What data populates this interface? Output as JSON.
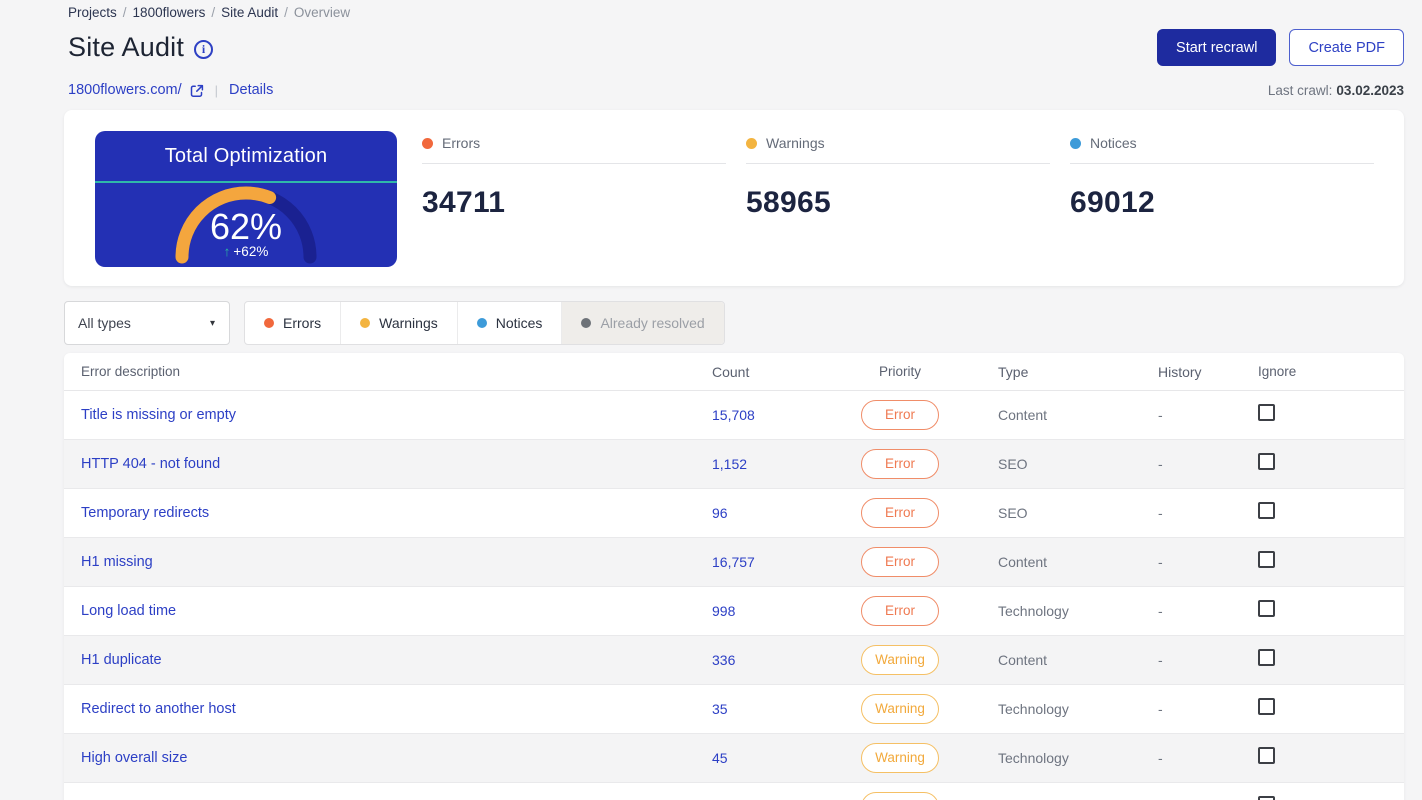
{
  "breadcrumb": {
    "items": [
      "Projects",
      "1800flowers",
      "Site Audit"
    ],
    "current": "Overview",
    "separator": "/"
  },
  "header": {
    "title": "Site Audit",
    "recrawl_label": "Start recrawl",
    "create_pdf_label": "Create PDF"
  },
  "site": {
    "domain": "1800flowers.com/",
    "details_label": "Details",
    "last_crawl_label": "Last crawl:",
    "last_crawl_date": "03.02.2023"
  },
  "gauge": {
    "title": "Total Optimization",
    "percent": 62,
    "value_label": "62%",
    "arrow": "↑",
    "delta_label": "+62%",
    "bg": "#2330b4",
    "track": "#1a2191",
    "progress": "#f4a63e",
    "line": "#2fb8a9",
    "arrow_color": "#2ab8a0"
  },
  "stats": {
    "items": [
      {
        "label": "Errors",
        "value": "34711",
        "color": "#f1683c"
      },
      {
        "label": "Warnings",
        "value": "58965",
        "color": "#f3b440"
      },
      {
        "label": "Notices",
        "value": "69012",
        "color": "#3d9bd9"
      }
    ]
  },
  "filter": {
    "type_select": {
      "value": "All types",
      "caret": "▾"
    },
    "tabs": [
      {
        "label": "Errors",
        "color": "#f1683c"
      },
      {
        "label": "Warnings",
        "color": "#f3b440"
      },
      {
        "label": "Notices",
        "color": "#3d9bd9"
      },
      {
        "label": "Already resolved",
        "color": "#6d7278",
        "bg": "#efedea",
        "inactive": true
      }
    ]
  },
  "badges": {
    "error": {
      "text": "#ef7a52",
      "border": "#f08d69"
    },
    "warning": {
      "text": "#f2a93b",
      "border": "#f5c065"
    }
  },
  "table": {
    "columns": [
      "Error description",
      "Count",
      "Priority",
      "Type",
      "History",
      "Ignore"
    ],
    "rows": [
      {
        "description": "Title is missing or empty",
        "count": "15,708",
        "priority": "Error",
        "type": "Content",
        "history": "-"
      },
      {
        "description": "HTTP 404 - not found",
        "count": "1,152",
        "priority": "Error",
        "type": "SEO",
        "history": "-"
      },
      {
        "description": "Temporary redirects",
        "count": "96",
        "priority": "Error",
        "type": "SEO",
        "history": "-"
      },
      {
        "description": "H1 missing",
        "count": "16,757",
        "priority": "Error",
        "type": "Content",
        "history": "-"
      },
      {
        "description": "Long load time",
        "count": "998",
        "priority": "Error",
        "type": "Technology",
        "history": "-"
      },
      {
        "description": "H1 duplicate",
        "count": "336",
        "priority": "Warning",
        "type": "Content",
        "history": "-"
      },
      {
        "description": "Redirect to another host",
        "count": "35",
        "priority": "Warning",
        "type": "Technology",
        "history": "-"
      },
      {
        "description": "High overall size",
        "count": "45",
        "priority": "Warning",
        "type": "Technology",
        "history": "-"
      },
      {
        "description": "",
        "count": "",
        "priority": "Warning",
        "type": "",
        "history": ""
      }
    ]
  }
}
